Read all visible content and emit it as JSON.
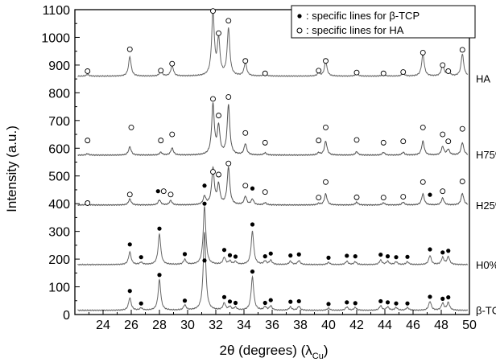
{
  "chart_data": {
    "type": "line",
    "xlabel": "2θ (degrees) (λ",
    "xlabel_sub": "Cu",
    "xlabel_close": ")",
    "ylabel": "Intensity (a.u.)",
    "xlim": [
      22,
      50
    ],
    "ylim": [
      0,
      1100
    ],
    "xticks": [
      24,
      26,
      28,
      30,
      32,
      34,
      36,
      38,
      40,
      42,
      44,
      46,
      48,
      50
    ],
    "yticks": [
      0,
      100,
      200,
      300,
      400,
      500,
      600,
      700,
      800,
      900,
      1000,
      1100
    ],
    "grid": false,
    "legend_position": "top-right",
    "legend": [
      {
        "marker": "filled",
        "text": ": specific lines for β-TCP"
      },
      {
        "marker": "open",
        "text": ": specific lines for HA"
      }
    ],
    "series": [
      {
        "name": "β-TCP",
        "color": "#666666",
        "baseline": 15,
        "peaks": [
          [
            25.9,
            45
          ],
          [
            26.7,
            8
          ],
          [
            28.0,
            110
          ],
          [
            29.8,
            18
          ],
          [
            31.2,
            280
          ],
          [
            32.6,
            25
          ],
          [
            33.0,
            12
          ],
          [
            33.4,
            10
          ],
          [
            34.6,
            120
          ],
          [
            35.5,
            12
          ],
          [
            35.9,
            15
          ],
          [
            37.3,
            12
          ],
          [
            37.9,
            14
          ],
          [
            40.0,
            8
          ],
          [
            41.3,
            12
          ],
          [
            41.9,
            10
          ],
          [
            43.7,
            16
          ],
          [
            44.2,
            12
          ],
          [
            44.8,
            10
          ],
          [
            45.6,
            10
          ],
          [
            47.2,
            32
          ],
          [
            48.1,
            25
          ],
          [
            48.5,
            28
          ]
        ],
        "filled_markers": [
          [
            25.9,
            85
          ],
          [
            26.7,
            40
          ],
          [
            28.0,
            143
          ],
          [
            29.8,
            50
          ],
          [
            31.2,
            195
          ],
          [
            32.6,
            63
          ],
          [
            33.0,
            47
          ],
          [
            33.4,
            42
          ],
          [
            34.6,
            155
          ],
          [
            35.5,
            42
          ],
          [
            35.9,
            52
          ],
          [
            37.3,
            46
          ],
          [
            37.9,
            48
          ],
          [
            40.0,
            38
          ],
          [
            41.3,
            44
          ],
          [
            41.9,
            41
          ],
          [
            43.7,
            48
          ],
          [
            44.2,
            44
          ],
          [
            44.8,
            40
          ],
          [
            45.6,
            40
          ],
          [
            47.2,
            64
          ],
          [
            48.1,
            57
          ],
          [
            48.5,
            62
          ]
        ],
        "open_markers": []
      },
      {
        "name": "H0%",
        "color": "#666666",
        "baseline": 180,
        "peaks": [
          [
            25.9,
            45
          ],
          [
            26.7,
            8
          ],
          [
            28.0,
            110
          ],
          [
            29.8,
            18
          ],
          [
            31.2,
            210
          ],
          [
            32.6,
            25
          ],
          [
            33.0,
            12
          ],
          [
            33.4,
            10
          ],
          [
            34.6,
            120
          ],
          [
            35.5,
            12
          ],
          [
            35.9,
            15
          ],
          [
            37.3,
            12
          ],
          [
            37.9,
            14
          ],
          [
            40.0,
            8
          ],
          [
            41.3,
            12
          ],
          [
            41.9,
            10
          ],
          [
            43.7,
            16
          ],
          [
            44.2,
            12
          ],
          [
            44.8,
            10
          ],
          [
            45.6,
            10
          ],
          [
            47.2,
            32
          ],
          [
            48.1,
            25
          ],
          [
            48.5,
            28
          ]
        ],
        "filled_markers": [
          [
            25.9,
            253
          ],
          [
            26.7,
            207
          ],
          [
            28.0,
            310
          ],
          [
            29.8,
            218
          ],
          [
            31.2,
            400
          ],
          [
            32.6,
            233
          ],
          [
            33.0,
            214
          ],
          [
            33.4,
            209
          ],
          [
            34.6,
            325
          ],
          [
            35.5,
            210
          ],
          [
            35.9,
            220
          ],
          [
            37.3,
            213
          ],
          [
            37.9,
            217
          ],
          [
            40.0,
            205
          ],
          [
            41.3,
            212
          ],
          [
            41.9,
            210
          ],
          [
            43.7,
            216
          ],
          [
            44.2,
            210
          ],
          [
            44.8,
            207
          ],
          [
            45.6,
            208
          ],
          [
            47.2,
            235
          ],
          [
            48.1,
            224
          ],
          [
            48.5,
            230
          ]
        ],
        "open_markers": []
      },
      {
        "name": "H25%",
        "color": "#555555",
        "baseline": 395,
        "peaks": [
          [
            22.9,
            5
          ],
          [
            25.9,
            22
          ],
          [
            28.0,
            18
          ],
          [
            28.8,
            16
          ],
          [
            31.2,
            30
          ],
          [
            31.8,
            130
          ],
          [
            32.2,
            70
          ],
          [
            32.9,
            135
          ],
          [
            34.1,
            30
          ],
          [
            34.6,
            20
          ],
          [
            35.5,
            8
          ],
          [
            39.3,
            5
          ],
          [
            39.8,
            40
          ],
          [
            42.0,
            10
          ],
          [
            43.9,
            8
          ],
          [
            45.3,
            10
          ],
          [
            46.7,
            40
          ],
          [
            48.1,
            25
          ],
          [
            49.5,
            42
          ]
        ],
        "filled_markers": [
          [
            27.9,
            445
          ],
          [
            31.2,
            465
          ],
          [
            34.6,
            455
          ],
          [
            47.2,
            432
          ]
        ],
        "open_markers": [
          [
            22.9,
            402
          ],
          [
            25.9,
            433
          ],
          [
            28.3,
            445
          ],
          [
            28.8,
            433
          ],
          [
            31.8,
            515
          ],
          [
            32.2,
            505
          ],
          [
            32.9,
            545
          ],
          [
            34.1,
            465
          ],
          [
            35.5,
            442
          ],
          [
            39.3,
            422
          ],
          [
            39.8,
            478
          ],
          [
            42.0,
            423
          ],
          [
            43.9,
            422
          ],
          [
            45.3,
            425
          ],
          [
            46.7,
            478
          ],
          [
            48.1,
            445
          ],
          [
            49.5,
            480
          ]
        ],
        "_note": ""
      },
      {
        "name": "H75%",
        "color": "#555555",
        "baseline": 575,
        "peaks": [
          [
            22.9,
            5
          ],
          [
            25.9,
            30
          ],
          [
            28.1,
            10
          ],
          [
            28.9,
            25
          ],
          [
            31.8,
            180
          ],
          [
            32.2,
            100
          ],
          [
            32.9,
            180
          ],
          [
            34.1,
            40
          ],
          [
            35.5,
            8
          ],
          [
            39.3,
            8
          ],
          [
            39.8,
            50
          ],
          [
            42.0,
            12
          ],
          [
            43.9,
            10
          ],
          [
            45.3,
            10
          ],
          [
            46.7,
            50
          ],
          [
            48.1,
            30
          ],
          [
            48.5,
            20
          ],
          [
            49.5,
            45
          ]
        ],
        "filled_markers": [],
        "open_markers": [
          [
            22.9,
            628
          ],
          [
            26.0,
            675
          ],
          [
            28.1,
            628
          ],
          [
            28.9,
            650
          ],
          [
            31.8,
            778
          ],
          [
            32.2,
            718
          ],
          [
            32.9,
            785
          ],
          [
            34.1,
            655
          ],
          [
            35.5,
            620
          ],
          [
            39.3,
            628
          ],
          [
            39.8,
            675
          ],
          [
            42.0,
            630
          ],
          [
            43.9,
            620
          ],
          [
            45.3,
            625
          ],
          [
            46.7,
            675
          ],
          [
            48.1,
            650
          ],
          [
            48.5,
            625
          ],
          [
            49.5,
            670
          ]
        ]
      },
      {
        "name": "HA",
        "color": "#666666",
        "baseline": 860,
        "peaks": [
          [
            22.9,
            6
          ],
          [
            25.9,
            70
          ],
          [
            28.1,
            18
          ],
          [
            28.9,
            38
          ],
          [
            31.8,
            230
          ],
          [
            32.2,
            130
          ],
          [
            32.9,
            170
          ],
          [
            34.1,
            48
          ],
          [
            35.5,
            8
          ],
          [
            39.3,
            10
          ],
          [
            39.8,
            52
          ],
          [
            42.0,
            10
          ],
          [
            43.9,
            8
          ],
          [
            45.3,
            10
          ],
          [
            46.7,
            80
          ],
          [
            48.1,
            40
          ],
          [
            48.5,
            20
          ],
          [
            49.5,
            80
          ]
        ],
        "filled_markers": [],
        "open_markers": [
          [
            22.9,
            878
          ],
          [
            25.9,
            957
          ],
          [
            28.1,
            880
          ],
          [
            28.9,
            905
          ],
          [
            31.8,
            1095
          ],
          [
            32.2,
            1015
          ],
          [
            32.9,
            1060
          ],
          [
            34.1,
            915
          ],
          [
            35.5,
            870
          ],
          [
            39.3,
            880
          ],
          [
            39.8,
            915
          ],
          [
            42.0,
            873
          ],
          [
            43.9,
            870
          ],
          [
            45.3,
            875
          ],
          [
            46.7,
            945
          ],
          [
            48.1,
            900
          ],
          [
            48.5,
            878
          ],
          [
            49.5,
            955
          ]
        ]
      }
    ]
  }
}
